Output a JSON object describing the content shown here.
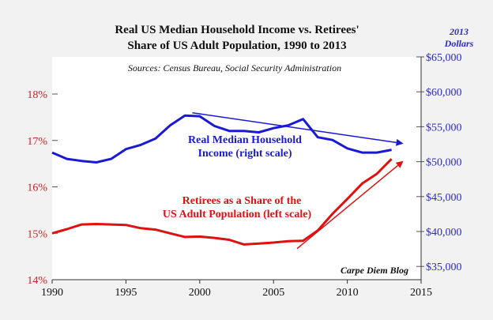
{
  "chart_data": {
    "type": "line",
    "title_line1": "Real US Median Household Income vs. Retirees'",
    "title_line2": "Share of US Adult Population, 1990 to 2013",
    "right_unit_line1": "2013",
    "right_unit_line2": "Dollars",
    "sources": "Sources: Census Bureau, Social Security Administration",
    "credit": "Carpe Diem Blog",
    "x_ticks": [
      "1990",
      "1995",
      "2000",
      "2005",
      "2010",
      "2015"
    ],
    "xlim": [
      1990,
      2015
    ],
    "left_axis": {
      "ticks": [
        "14%",
        "15%",
        "16%",
        "17%",
        "18%"
      ],
      "ylim": [
        14,
        18.8
      ],
      "color": "#d42020"
    },
    "right_axis": {
      "ticks": [
        "$35,000",
        "$40,000",
        "$45,000",
        "$50,000",
        "$55,000",
        "$60,000",
        "$65,000"
      ],
      "ylim": [
        33100,
        65000
      ],
      "color": "#2a2acc"
    },
    "series": [
      {
        "name": "income",
        "label_line1": "Real Median Household",
        "label_line2": "Income (right scale)",
        "axis": "right",
        "color": "#1a1ad6",
        "x": [
          1990,
          1991,
          1992,
          1993,
          1994,
          1995,
          1996,
          1997,
          1998,
          1999,
          2000,
          2001,
          2002,
          2003,
          2004,
          2005,
          2006,
          2007,
          2008,
          2009,
          2010,
          2011,
          2012,
          2013
        ],
        "values": [
          51300,
          50400,
          50100,
          49900,
          50400,
          51800,
          52400,
          53300,
          55200,
          56600,
          56500,
          55100,
          54400,
          54400,
          54200,
          54800,
          55200,
          56100,
          53500,
          53100,
          51900,
          51300,
          51300,
          51700
        ]
      },
      {
        "name": "retirees",
        "label_line1": "Retirees as a Share of the",
        "label_line2": "US Adult Population (left scale)",
        "axis": "left",
        "color": "#e01010",
        "x": [
          1990,
          1991,
          1992,
          1993,
          1994,
          1995,
          1996,
          1997,
          1998,
          1999,
          2000,
          2001,
          2002,
          2003,
          2004,
          2005,
          2006,
          2007,
          2008,
          2009,
          2010,
          2011,
          2012,
          2013
        ],
        "values": [
          15.0,
          15.09,
          15.19,
          15.2,
          15.19,
          15.18,
          15.11,
          15.08,
          15.0,
          14.92,
          14.93,
          14.9,
          14.86,
          14.76,
          14.78,
          14.8,
          14.83,
          14.84,
          15.06,
          15.42,
          15.74,
          16.07,
          16.28,
          16.6
        ]
      }
    ],
    "trend_arrows": [
      {
        "name": "income-trend",
        "axis": "right",
        "color": "#1a1ad6",
        "from": [
          1999.5,
          57000
        ],
        "to": [
          2013.8,
          52600
        ]
      },
      {
        "name": "retirees-trend",
        "axis": "left",
        "color": "#e01010",
        "from": [
          2006.6,
          14.67
        ],
        "to": [
          2013.8,
          16.56
        ]
      }
    ]
  }
}
